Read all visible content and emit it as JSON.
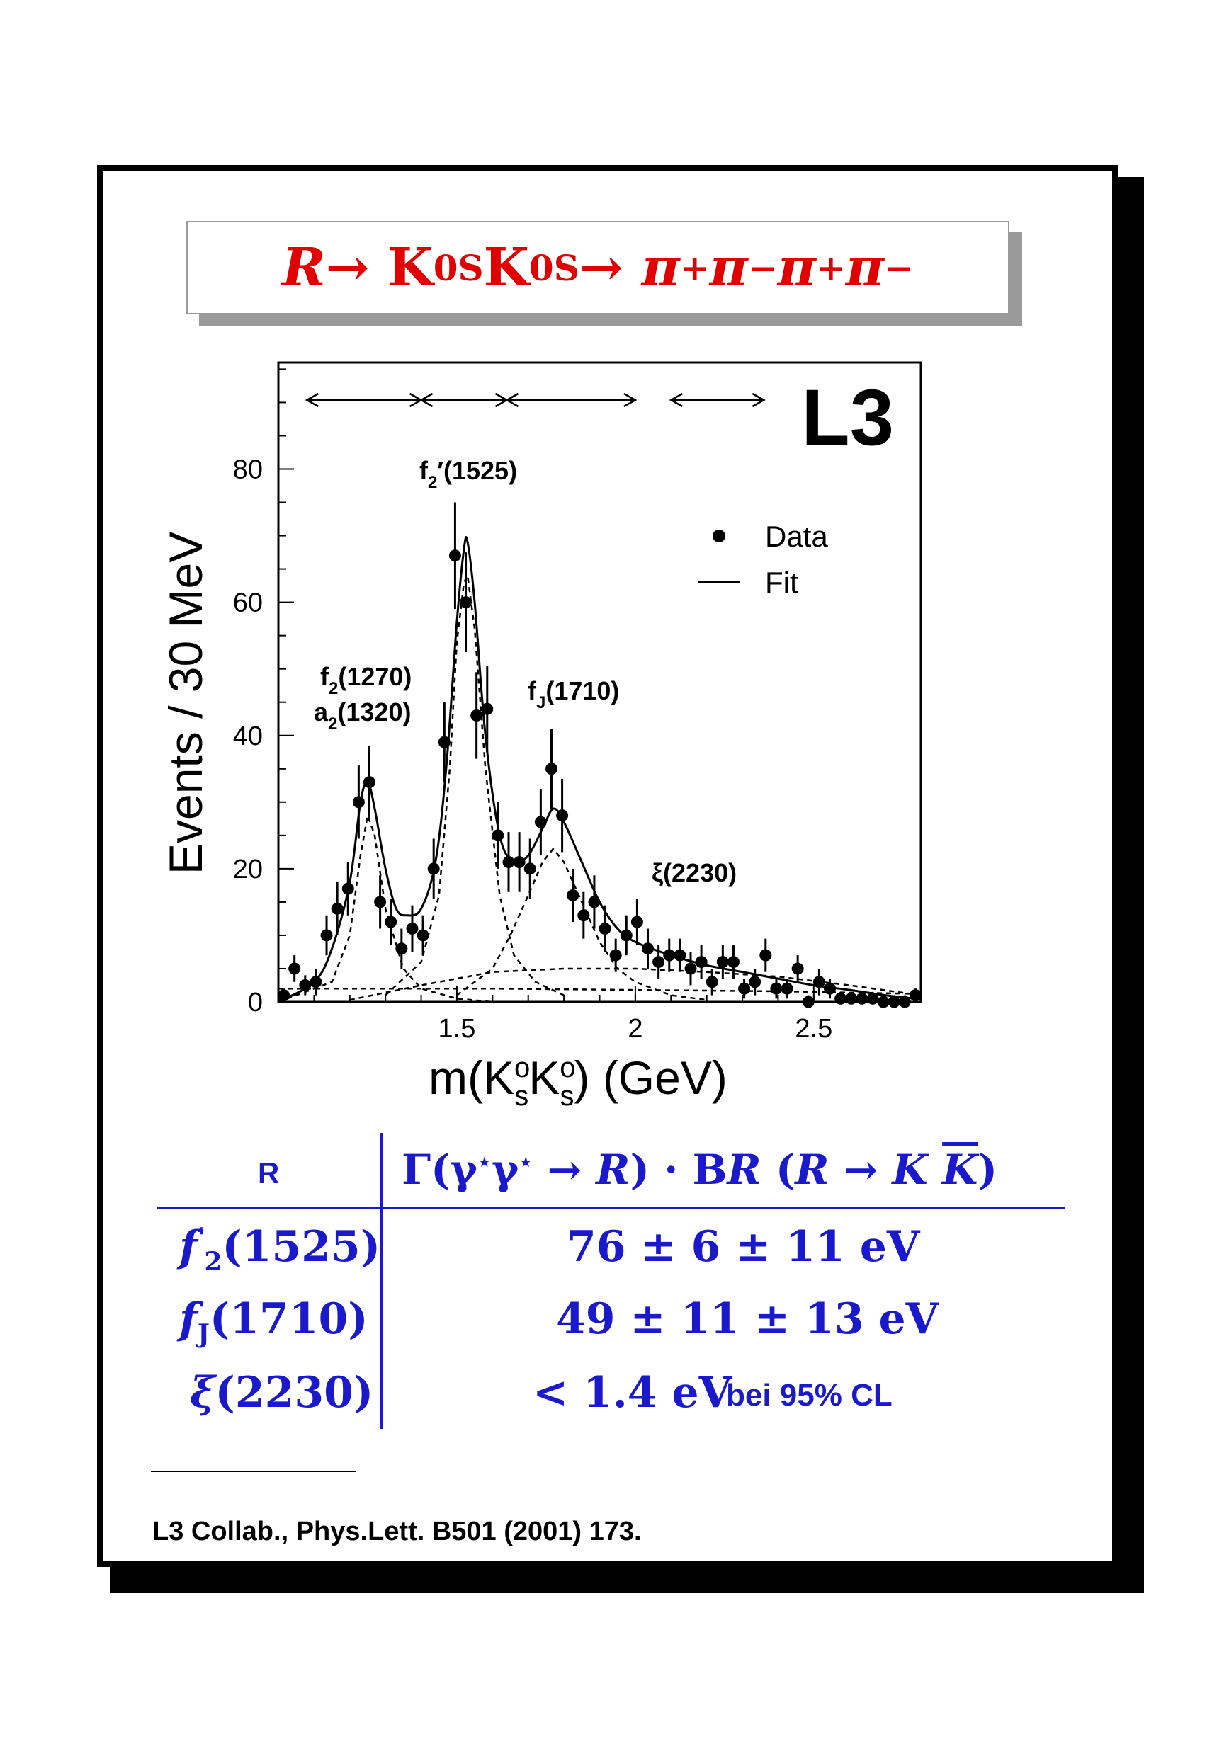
{
  "title": {
    "parts": [
      "R",
      " → K",
      "0",
      "S",
      " K",
      "0",
      "S",
      " → π",
      "+",
      "π",
      "−",
      " π",
      "+",
      " π",
      "−"
    ]
  },
  "chart_data": {
    "type": "scatter",
    "xlabel": "m(KoSKoS) (GeV)",
    "xlabel_parts": [
      "m(K",
      "o",
      "s",
      "K",
      "o",
      "s",
      ") (GeV)"
    ],
    "ylabel": "Events / 30 MeV",
    "xlim": [
      1.0,
      2.8
    ],
    "ylim": [
      0,
      96
    ],
    "xticks": [
      1.5,
      2,
      2.5
    ],
    "xtick_labels": [
      "1.5",
      "2",
      "2.5"
    ],
    "yticks": [
      0,
      20,
      40,
      60,
      80
    ],
    "ytick_labels": [
      "0",
      "20",
      "40",
      "60",
      "80"
    ],
    "experiment_label": "L3",
    "legend": {
      "data": "Data",
      "fit": "Fit",
      "position": "top-right"
    },
    "annotations": {
      "f2p_main": "f",
      "f2p_sub": "2",
      "f2p_rest": "′(1525)",
      "f2_main": "f",
      "f2_sub": "2",
      "f2_rest": "(1270)",
      "a2_main": "a",
      "a2_sub": "2",
      "a2_rest": "(1320)",
      "fj_main": "f",
      "fj_sub": "J",
      "fj_rest": "(1710)",
      "xi": "ξ(2230)"
    },
    "fit_windows": [
      [
        1.08,
        1.4
      ],
      [
        1.4,
        1.64
      ],
      [
        1.64,
        2.0
      ],
      [
        2.1,
        2.36
      ]
    ],
    "series": [
      {
        "name": "Data",
        "x": [
          1.015,
          1.045,
          1.075,
          1.105,
          1.135,
          1.165,
          1.195,
          1.225,
          1.255,
          1.285,
          1.315,
          1.345,
          1.375,
          1.405,
          1.435,
          1.465,
          1.495,
          1.525,
          1.555,
          1.585,
          1.615,
          1.645,
          1.675,
          1.705,
          1.735,
          1.765,
          1.795,
          1.825,
          1.855,
          1.885,
          1.915,
          1.945,
          1.975,
          2.005,
          2.035,
          2.065,
          2.095,
          2.125,
          2.155,
          2.185,
          2.215,
          2.245,
          2.275,
          2.305,
          2.335,
          2.365,
          2.395,
          2.425,
          2.455,
          2.485,
          2.515,
          2.545,
          2.575,
          2.605,
          2.635,
          2.665,
          2.695,
          2.725,
          2.755,
          2.785
        ],
        "y": [
          1,
          5,
          2.5,
          3,
          10,
          14,
          17,
          30,
          33,
          15,
          12,
          8,
          11,
          10,
          20,
          39,
          67,
          60,
          43,
          44,
          25,
          21,
          21,
          20,
          27,
          35,
          28,
          16,
          13,
          15,
          11,
          7,
          10,
          12,
          8,
          6,
          7,
          7,
          5,
          6,
          3,
          6,
          6,
          2,
          3,
          7,
          2,
          2,
          5,
          0,
          3,
          2,
          0.5,
          0.5,
          0.5,
          0.5,
          0,
          0,
          0,
          1
        ],
        "yerr": [
          1,
          2,
          1.5,
          2,
          3,
          4,
          4,
          5.5,
          5.5,
          4,
          3.5,
          3,
          3.5,
          3,
          4.5,
          6,
          8,
          7.5,
          6.5,
          6.5,
          5,
          4.5,
          4.5,
          4.5,
          5,
          6,
          5.5,
          4,
          3.5,
          4,
          3.5,
          2.5,
          3,
          3.5,
          3,
          2.5,
          2.5,
          2.5,
          2.5,
          2.5,
          2,
          2.5,
          2.5,
          1.5,
          2,
          2.5,
          1.5,
          1.5,
          2,
          1,
          2,
          1.5,
          1,
          1,
          1,
          1,
          1,
          1,
          1,
          1
        ]
      },
      {
        "name": "Fit",
        "x": [
          1.0,
          1.1,
          1.15,
          1.2,
          1.23,
          1.25,
          1.27,
          1.3,
          1.33,
          1.36,
          1.4,
          1.44,
          1.47,
          1.5,
          1.52,
          1.53,
          1.55,
          1.58,
          1.62,
          1.66,
          1.7,
          1.74,
          1.77,
          1.8,
          1.85,
          1.9,
          1.95,
          2.0,
          2.1,
          2.2,
          2.3,
          2.4,
          2.5,
          2.6,
          2.7,
          2.8
        ],
        "y": [
          0,
          3,
          8,
          18,
          30,
          33,
          29,
          20,
          14,
          13,
          14,
          21,
          35,
          57,
          68,
          69,
          60,
          40,
          25,
          21,
          22,
          26,
          29,
          27,
          21,
          15,
          11,
          9,
          7,
          5.5,
          4.5,
          3.5,
          2.5,
          1.8,
          1,
          0.4
        ]
      }
    ],
    "components": [
      {
        "x": [
          1.0,
          1.15,
          1.2,
          1.23,
          1.25,
          1.27,
          1.3,
          1.35,
          1.4,
          1.5,
          1.6,
          1.7
        ],
        "y": [
          0,
          3,
          10,
          22,
          28,
          25,
          14,
          5,
          2,
          0.5,
          0,
          0
        ]
      },
      {
        "x": [
          1.3,
          1.4,
          1.45,
          1.48,
          1.5,
          1.52,
          1.53,
          1.55,
          1.58,
          1.62,
          1.66,
          1.72,
          1.8
        ],
        "y": [
          1,
          6,
          16,
          35,
          54,
          63,
          64,
          56,
          35,
          16,
          7,
          3,
          1
        ]
      },
      {
        "x": [
          1.5,
          1.6,
          1.65,
          1.7,
          1.74,
          1.77,
          1.8,
          1.85,
          1.9,
          1.95,
          2.0,
          2.1,
          2.2
        ],
        "y": [
          1,
          5,
          10,
          16,
          21,
          23,
          21,
          15,
          9,
          5,
          3,
          1,
          0.3
        ]
      },
      {
        "x": [
          1.2,
          1.4,
          1.6,
          1.8,
          2.0,
          2.2,
          2.4,
          2.6,
          2.8
        ],
        "y": [
          0.3,
          2.5,
          4.5,
          5,
          5,
          4.5,
          3.8,
          2.5,
          1
        ]
      },
      {
        "x": [
          1.0,
          1.3,
          1.6,
          2.0,
          2.4,
          2.8
        ],
        "y": [
          2,
          2,
          2,
          1.8,
          1.6,
          1.2
        ]
      }
    ]
  },
  "table": {
    "header": {
      "r_label": "R",
      "formula_parts": [
        "Γ(γ",
        "⋆",
        "γ",
        "⋆",
        " → ",
        "R",
        ") · B",
        "R",
        " (",
        "R",
        " → ",
        "K",
        " ",
        "K",
        ")"
      ]
    },
    "rows": [
      {
        "name_main": "f",
        "name_sup": "′",
        "name_sub": "2",
        "name_rest": "(1525)",
        "value": "76 ± 6 ± 11 eV",
        "extra": ""
      },
      {
        "name_main": "f",
        "name_sup": "",
        "name_sub": "J",
        "name_rest": "(1710)",
        "value": "49 ± 11 ± 13 eV",
        "extra": ""
      },
      {
        "name_main": "ξ",
        "name_sup": "",
        "name_sub": "",
        "name_rest": "(2230)",
        "value": "< 1.4 eV",
        "extra": "bei 95% CL"
      }
    ]
  },
  "footnote": "L3 Collab., Phys.Lett. B501 (2001) 173.",
  "colors": {
    "title": "#e00000",
    "table": "#1a1acc",
    "frame": "#000000",
    "title_shadow": "#9a9a9a"
  }
}
